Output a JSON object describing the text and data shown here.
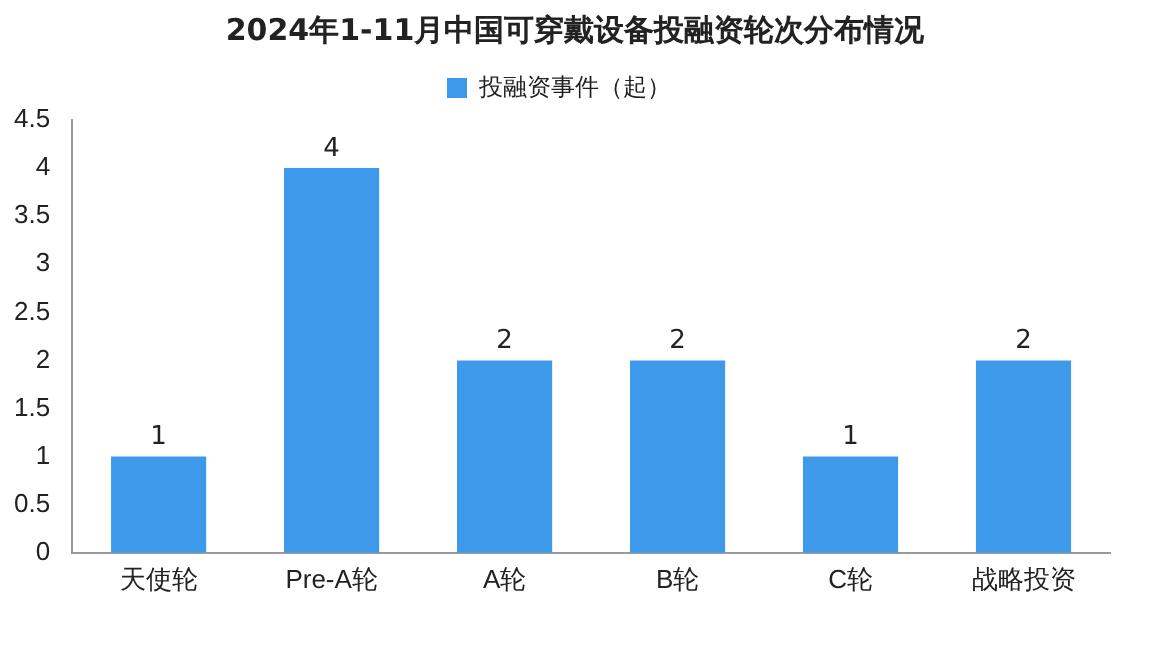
{
  "chart_data": {
    "type": "bar",
    "title": "2024年1-11月中国可穿戴设备投融资轮次分布情况",
    "categories": [
      "天使轮",
      "Pre-A轮",
      "A轮",
      "B轮",
      "C轮",
      "战略投资"
    ],
    "series": [
      {
        "name": "投融资事件（起）",
        "color": "#3d99ea",
        "values": [
          1,
          4,
          2,
          2,
          1,
          2
        ]
      }
    ],
    "ylim": [
      0,
      4.5
    ],
    "yticks": [
      0,
      0.5,
      1,
      1.5,
      2,
      2.5,
      3,
      3.5,
      4,
      4.5
    ],
    "grid": false,
    "legend": "top",
    "data_labels": true
  }
}
